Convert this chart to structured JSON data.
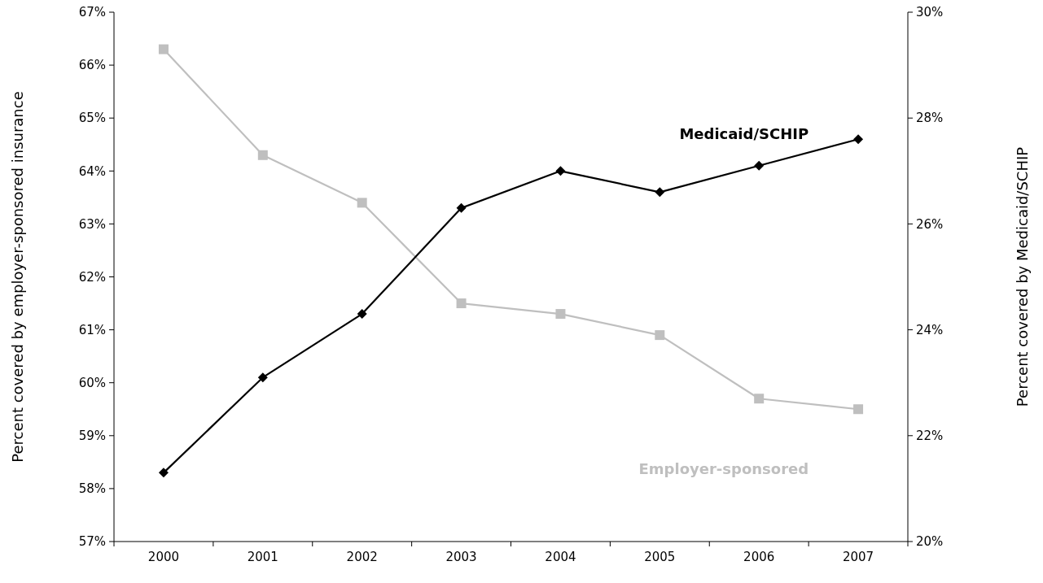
{
  "chart_data": {
    "type": "line",
    "categories": [
      "2000",
      "2001",
      "2002",
      "2003",
      "2004",
      "2005",
      "2006",
      "2007"
    ],
    "ylabel": "Percent covered by employer-sponsored insurance",
    "y2label": "Percent covered by Medicaid/SCHIP",
    "ylim": [
      57,
      67
    ],
    "yticks": [
      {
        "value": 57,
        "label": "57%"
      },
      {
        "value": 58,
        "label": "58%"
      },
      {
        "value": 59,
        "label": "59%"
      },
      {
        "value": 60,
        "label": "60%"
      },
      {
        "value": 61,
        "label": "61%"
      },
      {
        "value": 62,
        "label": "62%"
      },
      {
        "value": 63,
        "label": "63%"
      },
      {
        "value": 64,
        "label": "64%"
      },
      {
        "value": 65,
        "label": "65%"
      },
      {
        "value": 66,
        "label": "66%"
      },
      {
        "value": 67,
        "label": "67%"
      }
    ],
    "y2lim": [
      20,
      30
    ],
    "y2ticks": [
      {
        "value": 20,
        "label": "20%"
      },
      {
        "value": 22,
        "label": "22%"
      },
      {
        "value": 24,
        "label": "24%"
      },
      {
        "value": 26,
        "label": "26%"
      },
      {
        "value": 28,
        "label": "28%"
      },
      {
        "value": 30,
        "label": "30%"
      }
    ],
    "grid": false,
    "series": [
      {
        "name": "Employer-sponsored",
        "color": "#bfbfbf",
        "marker": "square",
        "values": [
          66.3,
          64.3,
          63.4,
          61.5,
          61.3,
          60.9,
          59.7,
          59.5
        ]
      },
      {
        "name": "Medicaid/SCHIP",
        "color": "#000000",
        "marker": "diamond",
        "axis": "y2",
        "values": [
          21.3,
          23.1,
          24.3,
          26.3,
          27.0,
          26.6,
          27.1,
          27.6
        ]
      }
    ]
  }
}
